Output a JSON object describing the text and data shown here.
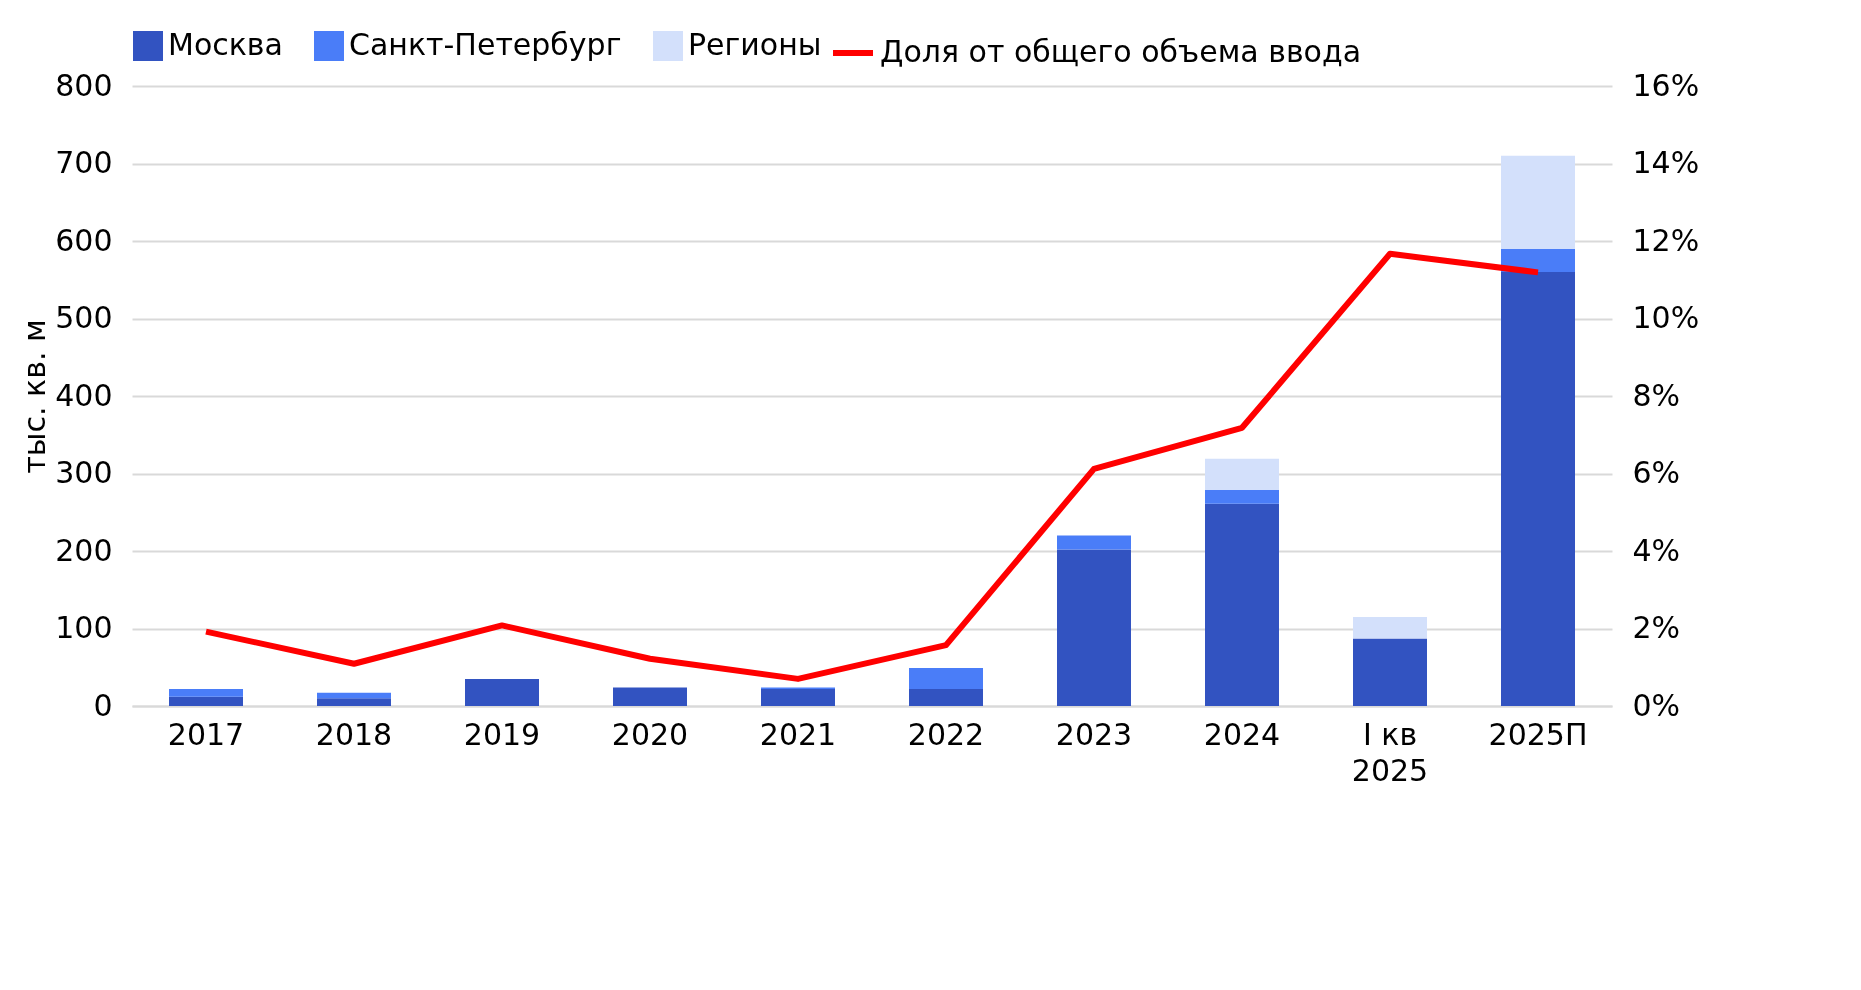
{
  "chart_data": {
    "type": "bar",
    "stacked": true,
    "ylabel": "тыс. кв. м",
    "legend": "top",
    "grid": "y",
    "categories": [
      "2017",
      "2018",
      "2019",
      "2020",
      "2021",
      "2022",
      "2023",
      "2024",
      "I кв 2025",
      "2025П"
    ],
    "series": [
      {
        "name": "Москва",
        "color": "#3253c1",
        "values": [
          12,
          10,
          35,
          24,
          22,
          22,
          202,
          261,
          87,
          560
        ]
      },
      {
        "name": "Санкт-Петербург",
        "color": "#4a7df8",
        "values": [
          10,
          7,
          0,
          0,
          2,
          27,
          18,
          18,
          0,
          30
        ]
      },
      {
        "name": "Регионы",
        "color": "#d3e0fb",
        "values": [
          0,
          0,
          0,
          0,
          0,
          0,
          0,
          40,
          28,
          120
        ]
      },
      {
        "name": "Доля от общего объема ввода",
        "type": "line",
        "axis": "y2",
        "color": "#ff0000",
        "values": [
          1.92,
          1.09,
          2.08,
          1.22,
          0.7,
          1.57,
          6.12,
          7.18,
          11.67,
          11.19
        ]
      }
    ],
    "ylim": [
      0,
      800
    ],
    "yticks": [
      0,
      100,
      200,
      300,
      400,
      500,
      600,
      700,
      800
    ],
    "y2lim": [
      0,
      16
    ],
    "y2ticks": [
      {
        "value": 0,
        "label": "0%"
      },
      {
        "value": 2,
        "label": "2%"
      },
      {
        "value": 4,
        "label": "4%"
      },
      {
        "value": 6,
        "label": "6%"
      },
      {
        "value": 8,
        "label": "8%"
      },
      {
        "value": 10,
        "label": "10%"
      },
      {
        "value": 12,
        "label": "12%"
      },
      {
        "value": 14,
        "label": "14%"
      },
      {
        "value": 16,
        "label": "16%"
      }
    ]
  }
}
